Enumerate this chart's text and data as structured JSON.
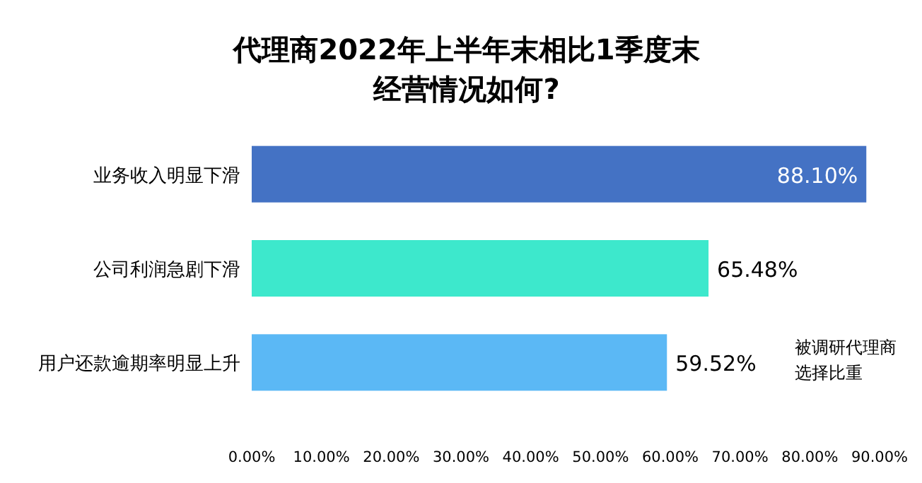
{
  "chart_data": {
    "type": "bar",
    "orientation": "horizontal",
    "title": "代理商2022年上半年末相比1季度末经营情况如何?",
    "categories": [
      "业务收入明显下滑",
      "公司利润急剧下滑",
      "用户还款逾期率明显上升"
    ],
    "values": [
      88.1,
      65.48,
      59.52
    ],
    "value_labels": [
      "88.10%",
      "65.48%",
      "59.52%"
    ],
    "colors": [
      "#4472c4",
      "#3de8cc",
      "#5bb8f5"
    ],
    "xlim": [
      0,
      90
    ],
    "xticks": [
      {
        "value": 0,
        "label": "0.00%"
      },
      {
        "value": 10,
        "label": "10.00%"
      },
      {
        "value": 20,
        "label": "20.00%"
      },
      {
        "value": 30,
        "label": "30.00%"
      },
      {
        "value": 40,
        "label": "40.00%"
      },
      {
        "value": 50,
        "label": "50.00%"
      },
      {
        "value": 60,
        "label": "60.00%"
      },
      {
        "value": 70,
        "label": "70.00%"
      },
      {
        "value": 80,
        "label": "80.00%"
      },
      {
        "value": 90,
        "label": "90.00%"
      }
    ],
    "annotations": [
      "被调研代理商选择比重"
    ]
  }
}
